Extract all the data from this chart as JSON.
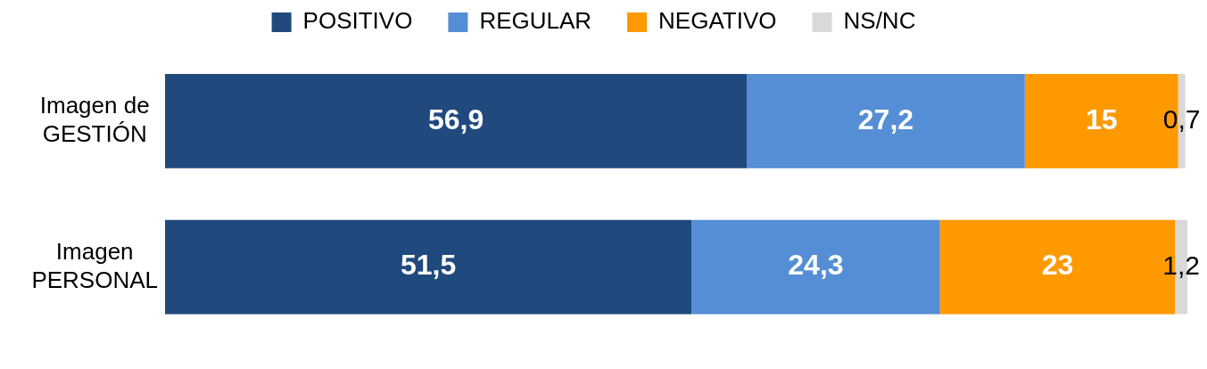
{
  "chart_data": {
    "type": "bar",
    "orientation": "horizontal",
    "stacked": true,
    "categories": [
      "Imagen de GESTIÓN",
      "Imagen PERSONAL"
    ],
    "series": [
      {
        "name": "POSITIVO",
        "color": "#204a7d",
        "values": [
          56.9,
          51.5
        ],
        "value_labels": [
          "56,9",
          "51,5"
        ]
      },
      {
        "name": "REGULAR",
        "color": "#558ed5",
        "values": [
          27.2,
          24.3
        ],
        "value_labels": [
          "27,2",
          "24,3"
        ]
      },
      {
        "name": "NEGATIVO",
        "color": "#ff9900",
        "values": [
          15,
          23
        ],
        "value_labels": [
          "15",
          "23"
        ]
      },
      {
        "name": "NS/NC",
        "color": "#d9d9d9",
        "values": [
          0.7,
          1.2
        ],
        "value_labels": [
          "0,7",
          "1,2"
        ]
      }
    ],
    "xlim": [
      0,
      100
    ],
    "legend": "top",
    "tick_labels": "y"
  }
}
